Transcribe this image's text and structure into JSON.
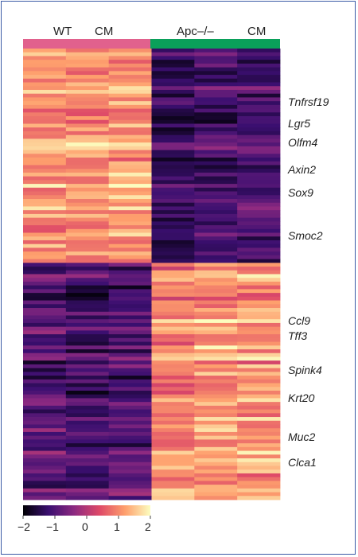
{
  "chart_data": {
    "type": "heatmap",
    "groups": [
      {
        "label_1": "WT",
        "label_2": "CM",
        "color": "#e1618d"
      },
      {
        "label_1": "Apc–/–",
        "label_2": "CM",
        "color": "#0aa05a"
      }
    ],
    "genes": [
      "Tnfrsf19",
      "Lgr5",
      "Olfm4",
      "Axin2",
      "Sox9",
      "Smoc2",
      "Ccl9",
      "Tff3",
      "Spink4",
      "Krt20",
      "Muc2",
      "Clca1"
    ],
    "colorbar": {
      "ticks": [
        "−2",
        "−1",
        "0",
        "1",
        "2"
      ],
      "min": -2,
      "max": 2,
      "colors": [
        "#000004",
        "#3b0f70",
        "#8c2981",
        "#de4968",
        "#fe9f6d",
        "#fcfdbf"
      ]
    },
    "columns": 6,
    "rows": 120,
    "cluster_split_fraction": 0.473,
    "cluster_1_mean": [
      1.2,
      1.15,
      1.3,
      -1.25,
      -1.0,
      -0.95
    ],
    "cluster_2_mean": [
      -0.95,
      -1.1,
      -1.0,
      1.05,
      1.2,
      1.15
    ]
  }
}
